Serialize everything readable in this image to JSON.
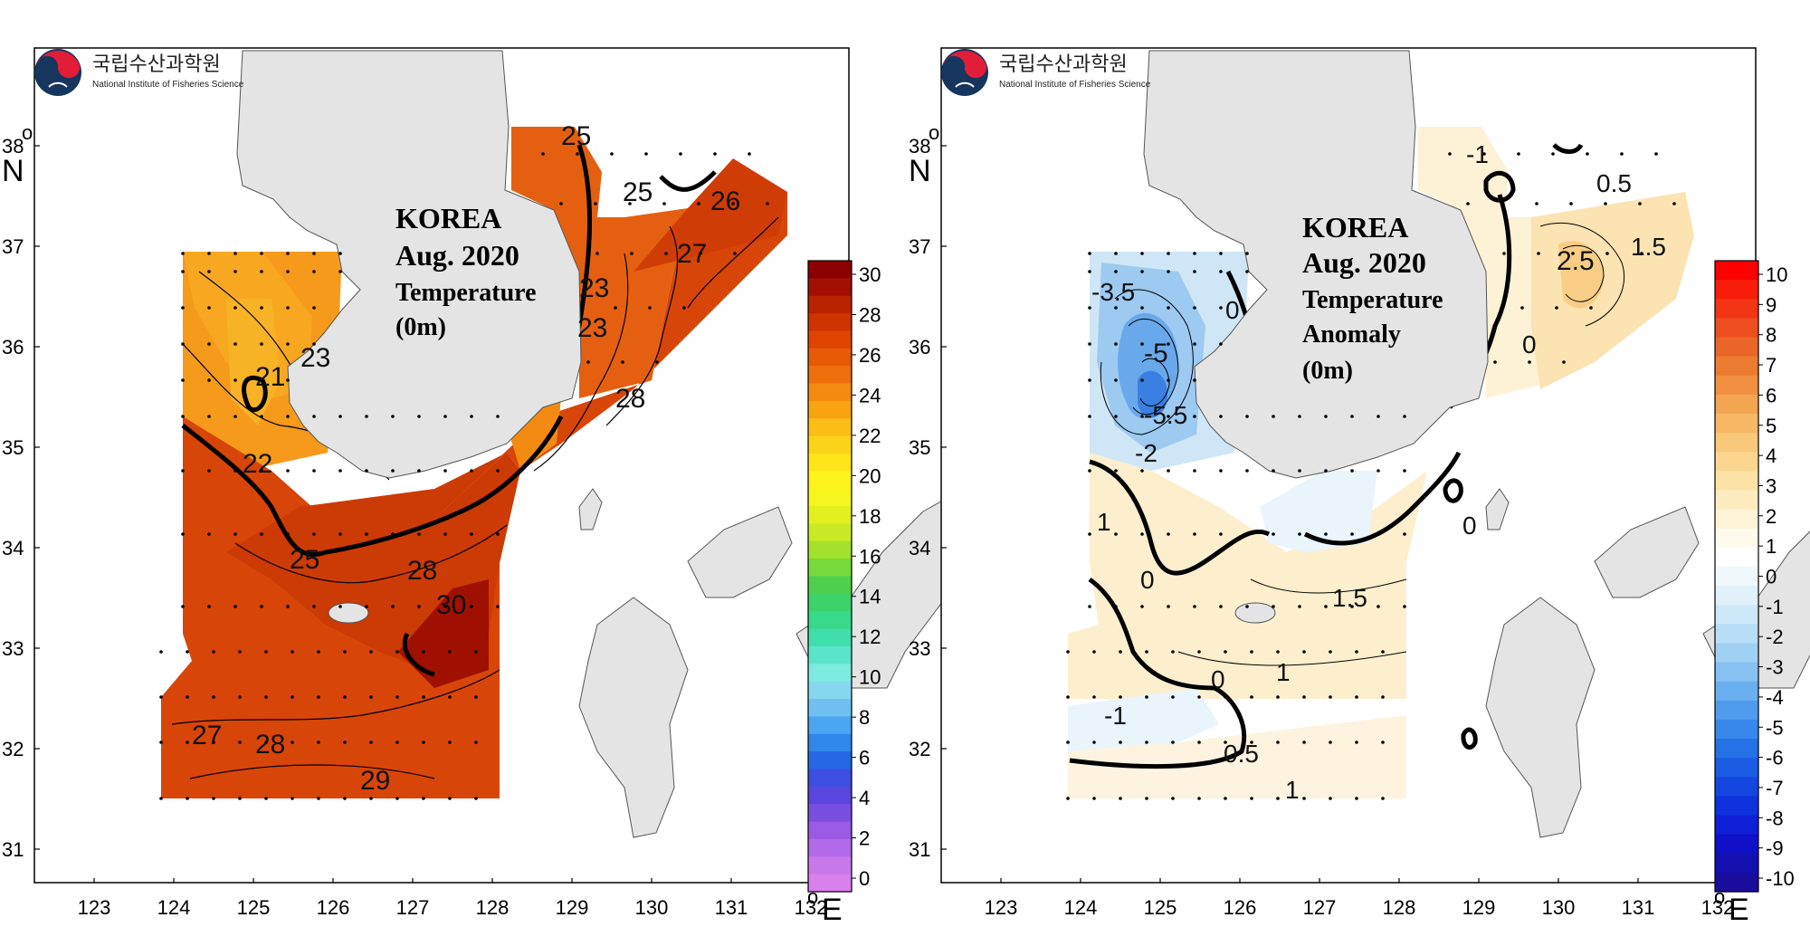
{
  "maps": [
    {
      "id": "temperature",
      "title_lines": [
        "KOREA",
        "Aug. 2020",
        "Temperature",
        "(0m)"
      ],
      "colorbar": {
        "labels": [
          "30",
          "28",
          "26",
          "24",
          "22",
          "20",
          "18",
          "16",
          "14",
          "12",
          "10",
          "8",
          "6",
          "4",
          "2",
          "0"
        ],
        "colors": [
          "#8b0000",
          "#a30f00",
          "#bb2200",
          "#cf3300",
          "#df4500",
          "#e85a05",
          "#ef700a",
          "#f58a10",
          "#f8a312",
          "#fbbd16",
          "#fbd318",
          "#fde51a",
          "#fdf21c",
          "#f6f41d",
          "#e3f01f",
          "#c8ea24",
          "#a4e12c",
          "#78d93a",
          "#4fd04c",
          "#3cd36a",
          "#37d98b",
          "#3fdeaa",
          "#5ae5c8",
          "#7ceadf",
          "#86d7ee",
          "#6fc0f0",
          "#4aa6f0",
          "#2f87ec",
          "#2468e4",
          "#3d4fe0",
          "#5a45de",
          "#7a4ee0",
          "#9a5ae4",
          "#b36ae8",
          "#c978ea",
          "#d880ec"
        ]
      },
      "contour_labels": [
        "25",
        "25",
        "26",
        "27",
        "23",
        "23",
        "21",
        "22",
        "23",
        "28",
        "25",
        "28",
        "30",
        "27",
        "28",
        "29"
      ]
    },
    {
      "id": "anomaly",
      "title_lines": [
        "KOREA",
        "Aug. 2020",
        "Temperature",
        "Anomaly",
        "(0m)"
      ],
      "colorbar": {
        "labels": [
          "10",
          "9",
          "8",
          "7",
          "6",
          "5",
          "4",
          "3",
          "2",
          "1",
          "0",
          "-1",
          "-2",
          "-3",
          "-4",
          "-5",
          "-6",
          "-7",
          "-8",
          "-9",
          "-10"
        ],
        "colors": [
          "#ff0000",
          "#f81d0a",
          "#f23515",
          "#ee4e1f",
          "#ea6628",
          "#ec7c30",
          "#f09040",
          "#f4a552",
          "#f7b866",
          "#f9c87a",
          "#fbd68f",
          "#fde2a6",
          "#fdecbf",
          "#fdf4d8",
          "#fefaec",
          "#ffffff",
          "#f0f8fc",
          "#e0f1fa",
          "#cde8f8",
          "#b8ddf6",
          "#a0d0f4",
          "#86c1f2",
          "#6ab0f0",
          "#4f9cee",
          "#3788ea",
          "#2572e6",
          "#1a5ce3",
          "#1446e0",
          "#1032dc",
          "#0f20d6",
          "#1010c8",
          "#1410b0",
          "#1a0c9c"
        ]
      },
      "contour_labels": [
        "-1",
        "0.5",
        "1.5",
        "2.5",
        "-3.5",
        "0",
        "-5",
        "-5.5",
        "-2",
        "1",
        "0",
        "0",
        "1.5",
        "1",
        "0",
        "-1",
        "0.5",
        "1",
        "0"
      ]
    }
  ],
  "axes": {
    "x_ticks": [
      "123",
      "124",
      "125",
      "126",
      "127",
      "128",
      "129",
      "130",
      "131",
      "132"
    ],
    "y_ticks": [
      "38",
      "37",
      "36",
      "35",
      "34",
      "33",
      "32",
      "31"
    ],
    "x_dir": "E",
    "y_dir": "N",
    "deg": "o"
  },
  "logo": {
    "korean": "국립수산과학원",
    "english": "National Institute of Fisheries Science"
  }
}
